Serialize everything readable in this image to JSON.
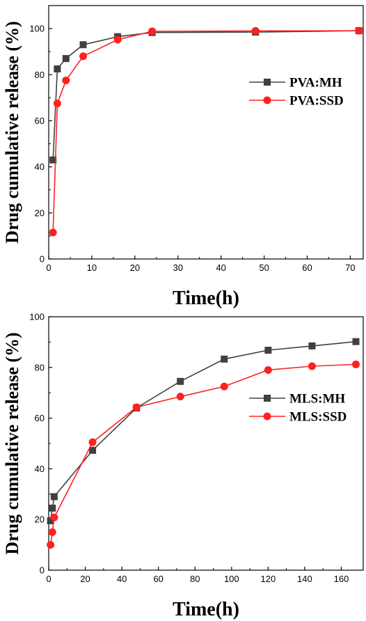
{
  "chart_data": [
    {
      "type": "line",
      "title": "",
      "xlabel": "Time(h)",
      "ylabel": "Drug cumulative release (%)",
      "xlim": [
        0,
        73
      ],
      "ylim": [
        0,
        110
      ],
      "xticks": [
        0,
        10,
        20,
        30,
        40,
        50,
        60,
        70
      ],
      "yticks": [
        0,
        20,
        40,
        60,
        80,
        100
      ],
      "legend": "center-right",
      "grid": false,
      "series": [
        {
          "name": "PVA:MH",
          "marker": "square",
          "color": "#404040",
          "x": [
            1,
            2,
            4,
            8,
            16,
            24,
            48,
            72
          ],
          "y": [
            43,
            82.5,
            87,
            93,
            96.5,
            98.3,
            98.5,
            99.1
          ]
        },
        {
          "name": "PVA:SSD",
          "marker": "circle",
          "color": "#ff2020",
          "x": [
            1,
            2,
            4,
            8,
            16,
            24,
            48,
            72
          ],
          "y": [
            11.5,
            67.5,
            77.5,
            88,
            95.2,
            98.8,
            99,
            99.1
          ]
        }
      ]
    },
    {
      "type": "line",
      "title": "",
      "xlabel": "Time(h)",
      "ylabel": "Drug cumulative release (%)",
      "xlim": [
        0,
        172
      ],
      "ylim": [
        0,
        100
      ],
      "xticks": [
        0,
        20,
        40,
        60,
        80,
        100,
        120,
        140,
        160
      ],
      "yticks": [
        0,
        20,
        40,
        60,
        80,
        100
      ],
      "legend": "center-right",
      "grid": false,
      "series": [
        {
          "name": "MLS:MH",
          "marker": "square",
          "color": "#404040",
          "x": [
            1,
            2,
            3,
            24,
            48,
            72,
            96,
            120,
            144,
            168
          ],
          "y": [
            19.5,
            24.5,
            29,
            47.3,
            64,
            74.5,
            83.3,
            86.8,
            88.5,
            90.2
          ]
        },
        {
          "name": "MLS:SSD",
          "marker": "circle",
          "color": "#ff2020",
          "x": [
            1,
            2,
            3,
            24,
            48,
            72,
            96,
            120,
            144,
            168
          ],
          "y": [
            10,
            15,
            20.8,
            50.5,
            64.3,
            68.5,
            72.5,
            79,
            80.5,
            81.2
          ]
        }
      ]
    }
  ]
}
